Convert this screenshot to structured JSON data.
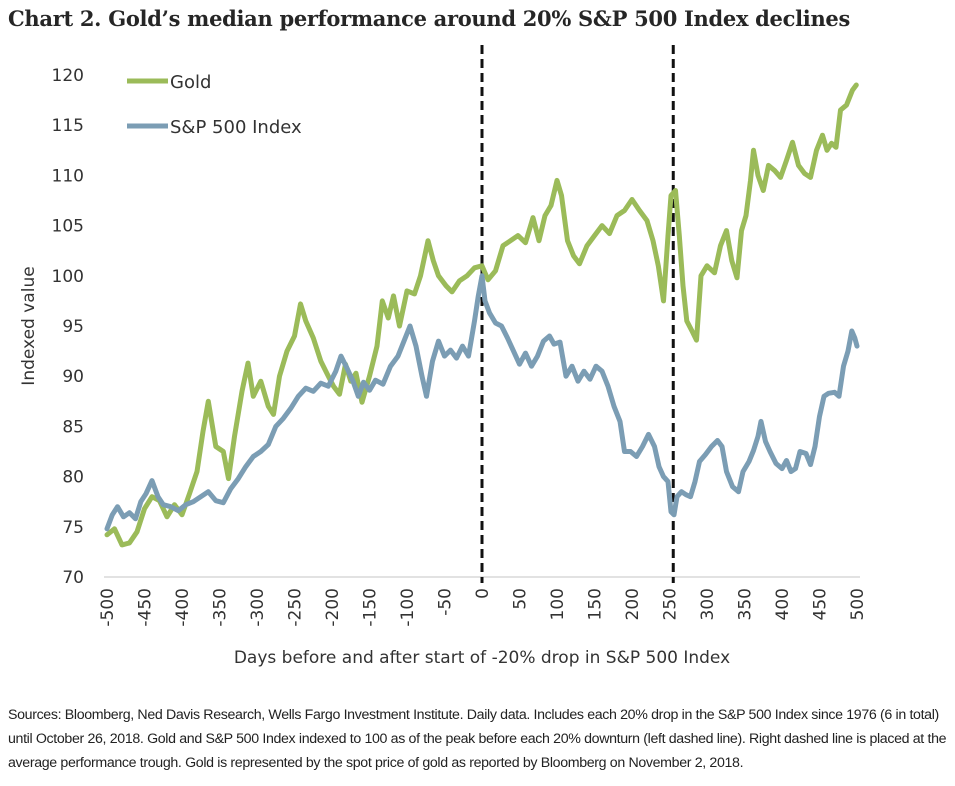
{
  "title": "Chart 2. Gold’s median performance around 20% S&P 500 Index declines",
  "footer": "Sources: Bloomberg, Ned Davis Research, Wells Fargo Investment Institute. Daily data. Includes each 20% drop in the S&P 500 Index since 1976 (6 in total) until October 26, 2018. Gold and S&P 500 Index indexed to 100 as of the peak before each 20% downturn (left dashed line). Right dashed line is placed at the average performance trough. Gold is represented by the spot price of gold as reported by Bloomberg on November 2, 2018.",
  "chart_data": {
    "type": "line",
    "title": "Chart 2. Gold’s median performance around 20% S&P 500 Index declines",
    "xlabel": "Days before and after start of -20% drop in S&P 500 Index",
    "ylabel": "Indexed value",
    "xlim": [
      -500,
      500
    ],
    "ylim": [
      70,
      120
    ],
    "x_ticks": [
      -500,
      -450,
      -400,
      -350,
      -300,
      -250,
      -200,
      -150,
      -100,
      -50,
      0,
      50,
      100,
      150,
      200,
      250,
      300,
      350,
      400,
      450,
      500
    ],
    "y_ticks": [
      70,
      75,
      80,
      85,
      90,
      95,
      100,
      105,
      110,
      115,
      120
    ],
    "grid": false,
    "legend": {
      "placement": "top-left",
      "entries": [
        "Gold",
        "S&P 500 Index"
      ]
    },
    "reference_lines": [
      {
        "x": 0,
        "style": "dashed",
        "color": "#111111",
        "meaning": "peak before 20% downturn"
      },
      {
        "x": 255,
        "style": "dashed",
        "color": "#111111",
        "meaning": "average performance trough"
      }
    ],
    "series": [
      {
        "name": "Gold",
        "color": "#9BBB59",
        "points": [
          [
            -500,
            74.2
          ],
          [
            -490,
            74.8
          ],
          [
            -480,
            73.2
          ],
          [
            -470,
            73.4
          ],
          [
            -460,
            74.5
          ],
          [
            -450,
            76.8
          ],
          [
            -440,
            78.0
          ],
          [
            -430,
            77.6
          ],
          [
            -420,
            76.0
          ],
          [
            -410,
            77.2
          ],
          [
            -400,
            76.2
          ],
          [
            -390,
            78.3
          ],
          [
            -380,
            80.5
          ],
          [
            -372,
            84.5
          ],
          [
            -365,
            87.5
          ],
          [
            -355,
            83.0
          ],
          [
            -345,
            82.5
          ],
          [
            -338,
            79.8
          ],
          [
            -330,
            84.0
          ],
          [
            -320,
            88.5
          ],
          [
            -312,
            91.3
          ],
          [
            -305,
            88.0
          ],
          [
            -295,
            89.5
          ],
          [
            -285,
            87.0
          ],
          [
            -278,
            86.2
          ],
          [
            -270,
            90.0
          ],
          [
            -260,
            92.5
          ],
          [
            -250,
            94.0
          ],
          [
            -242,
            97.2
          ],
          [
            -235,
            95.5
          ],
          [
            -225,
            93.8
          ],
          [
            -215,
            91.5
          ],
          [
            -205,
            90.0
          ],
          [
            -198,
            89.0
          ],
          [
            -190,
            88.2
          ],
          [
            -182,
            91.2
          ],
          [
            -175,
            89.5
          ],
          [
            -168,
            90.3
          ],
          [
            -160,
            87.4
          ],
          [
            -150,
            90.0
          ],
          [
            -140,
            93.0
          ],
          [
            -133,
            97.5
          ],
          [
            -125,
            95.8
          ],
          [
            -118,
            98.0
          ],
          [
            -110,
            95.0
          ],
          [
            -100,
            98.5
          ],
          [
            -90,
            98.2
          ],
          [
            -82,
            100.0
          ],
          [
            -72,
            103.5
          ],
          [
            -65,
            101.5
          ],
          [
            -58,
            100.0
          ],
          [
            -48,
            99.0
          ],
          [
            -40,
            98.4
          ],
          [
            -30,
            99.5
          ],
          [
            -20,
            100.0
          ],
          [
            -10,
            100.8
          ],
          [
            0,
            101.0
          ],
          [
            8,
            99.6
          ],
          [
            18,
            100.5
          ],
          [
            28,
            103.0
          ],
          [
            38,
            103.5
          ],
          [
            48,
            104.0
          ],
          [
            58,
            103.3
          ],
          [
            68,
            105.8
          ],
          [
            76,
            103.5
          ],
          [
            84,
            106.0
          ],
          [
            92,
            107.0
          ],
          [
            100,
            109.5
          ],
          [
            106,
            108.0
          ],
          [
            114,
            103.5
          ],
          [
            122,
            102.0
          ],
          [
            130,
            101.2
          ],
          [
            140,
            103.0
          ],
          [
            150,
            104.0
          ],
          [
            160,
            105.0
          ],
          [
            170,
            104.2
          ],
          [
            180,
            106.0
          ],
          [
            190,
            106.5
          ],
          [
            200,
            107.6
          ],
          [
            210,
            106.5
          ],
          [
            220,
            105.5
          ],
          [
            228,
            103.5
          ],
          [
            235,
            101.0
          ],
          [
            242,
            97.5
          ],
          [
            248,
            104.0
          ],
          [
            252,
            108.0
          ],
          [
            258,
            108.5
          ],
          [
            263,
            104.0
          ],
          [
            268,
            99.0
          ],
          [
            273,
            95.5
          ],
          [
            280,
            94.5
          ],
          [
            286,
            93.6
          ],
          [
            292,
            100.0
          ],
          [
            300,
            101.0
          ],
          [
            310,
            100.3
          ],
          [
            318,
            103.0
          ],
          [
            326,
            104.5
          ],
          [
            333,
            101.5
          ],
          [
            340,
            99.8
          ],
          [
            346,
            104.5
          ],
          [
            352,
            106.0
          ],
          [
            358,
            109.5
          ],
          [
            362,
            112.5
          ],
          [
            368,
            110.0
          ],
          [
            375,
            108.5
          ],
          [
            382,
            111.0
          ],
          [
            390,
            110.5
          ],
          [
            398,
            109.8
          ],
          [
            406,
            111.5
          ],
          [
            414,
            113.3
          ],
          [
            422,
            111.0
          ],
          [
            430,
            110.2
          ],
          [
            438,
            109.8
          ],
          [
            446,
            112.5
          ],
          [
            454,
            114.0
          ],
          [
            460,
            112.5
          ],
          [
            466,
            113.2
          ],
          [
            472,
            112.8
          ],
          [
            478,
            116.5
          ],
          [
            486,
            117.0
          ],
          [
            494,
            118.5
          ],
          [
            499,
            119.0
          ]
        ]
      },
      {
        "name": "S&P 500 Index",
        "color": "#7B9DB4",
        "points": [
          [
            -500,
            74.8
          ],
          [
            -493,
            76.2
          ],
          [
            -486,
            77.0
          ],
          [
            -478,
            76.0
          ],
          [
            -470,
            76.4
          ],
          [
            -462,
            75.8
          ],
          [
            -455,
            77.5
          ],
          [
            -448,
            78.3
          ],
          [
            -440,
            79.6
          ],
          [
            -432,
            78.0
          ],
          [
            -425,
            77.2
          ],
          [
            -415,
            77.0
          ],
          [
            -405,
            76.6
          ],
          [
            -395,
            77.2
          ],
          [
            -385,
            77.5
          ],
          [
            -375,
            78.0
          ],
          [
            -365,
            78.5
          ],
          [
            -355,
            77.6
          ],
          [
            -345,
            77.4
          ],
          [
            -335,
            78.8
          ],
          [
            -325,
            79.8
          ],
          [
            -315,
            81.0
          ],
          [
            -305,
            82.0
          ],
          [
            -295,
            82.5
          ],
          [
            -285,
            83.2
          ],
          [
            -275,
            85.0
          ],
          [
            -265,
            85.8
          ],
          [
            -255,
            86.8
          ],
          [
            -245,
            88.0
          ],
          [
            -235,
            88.8
          ],
          [
            -225,
            88.5
          ],
          [
            -215,
            89.3
          ],
          [
            -205,
            89.0
          ],
          [
            -195,
            90.5
          ],
          [
            -188,
            92.0
          ],
          [
            -180,
            90.8
          ],
          [
            -172,
            89.5
          ],
          [
            -165,
            88.0
          ],
          [
            -158,
            89.4
          ],
          [
            -150,
            88.6
          ],
          [
            -142,
            89.6
          ],
          [
            -132,
            89.2
          ],
          [
            -122,
            91.0
          ],
          [
            -112,
            92.0
          ],
          [
            -104,
            93.5
          ],
          [
            -96,
            95.0
          ],
          [
            -88,
            93.0
          ],
          [
            -80,
            90.0
          ],
          [
            -74,
            88.0
          ],
          [
            -66,
            91.5
          ],
          [
            -58,
            93.5
          ],
          [
            -50,
            92.0
          ],
          [
            -42,
            92.6
          ],
          [
            -34,
            91.8
          ],
          [
            -26,
            93.0
          ],
          [
            -18,
            92.0
          ],
          [
            -10,
            95.5
          ],
          [
            -5,
            98.0
          ],
          [
            0,
            100.0
          ],
          [
            4,
            97.5
          ],
          [
            10,
            96.3
          ],
          [
            18,
            95.3
          ],
          [
            26,
            95.0
          ],
          [
            34,
            93.8
          ],
          [
            42,
            92.5
          ],
          [
            50,
            91.2
          ],
          [
            58,
            92.3
          ],
          [
            66,
            91.0
          ],
          [
            74,
            92.0
          ],
          [
            82,
            93.5
          ],
          [
            90,
            94.0
          ],
          [
            96,
            93.2
          ],
          [
            104,
            93.4
          ],
          [
            112,
            90.0
          ],
          [
            120,
            91.0
          ],
          [
            128,
            89.5
          ],
          [
            136,
            90.5
          ],
          [
            144,
            89.7
          ],
          [
            152,
            91.0
          ],
          [
            160,
            90.5
          ],
          [
            168,
            89.0
          ],
          [
            176,
            87.0
          ],
          [
            184,
            85.5
          ],
          [
            190,
            82.5
          ],
          [
            198,
            82.5
          ],
          [
            206,
            82.0
          ],
          [
            214,
            83.0
          ],
          [
            222,
            84.2
          ],
          [
            230,
            83.0
          ],
          [
            236,
            81.0
          ],
          [
            242,
            80.0
          ],
          [
            248,
            79.5
          ],
          [
            252,
            76.5
          ],
          [
            256,
            76.2
          ],
          [
            260,
            78.0
          ],
          [
            266,
            78.5
          ],
          [
            272,
            78.2
          ],
          [
            278,
            78.0
          ],
          [
            284,
            79.5
          ],
          [
            290,
            81.5
          ],
          [
            298,
            82.2
          ],
          [
            306,
            83.0
          ],
          [
            314,
            83.6
          ],
          [
            320,
            83.0
          ],
          [
            326,
            80.5
          ],
          [
            334,
            79.0
          ],
          [
            342,
            78.5
          ],
          [
            348,
            80.5
          ],
          [
            356,
            81.5
          ],
          [
            362,
            82.6
          ],
          [
            368,
            84.0
          ],
          [
            372,
            85.5
          ],
          [
            378,
            83.5
          ],
          [
            384,
            82.5
          ],
          [
            392,
            81.3
          ],
          [
            400,
            80.8
          ],
          [
            406,
            81.6
          ],
          [
            412,
            80.5
          ],
          [
            418,
            80.8
          ],
          [
            424,
            82.5
          ],
          [
            432,
            82.3
          ],
          [
            438,
            81.2
          ],
          [
            444,
            83.0
          ],
          [
            450,
            86.0
          ],
          [
            456,
            88.0
          ],
          [
            462,
            88.3
          ],
          [
            470,
            88.4
          ],
          [
            476,
            88.0
          ],
          [
            482,
            91.0
          ],
          [
            488,
            92.5
          ],
          [
            493,
            94.5
          ],
          [
            497,
            93.8
          ],
          [
            500,
            93.0
          ]
        ]
      }
    ]
  }
}
